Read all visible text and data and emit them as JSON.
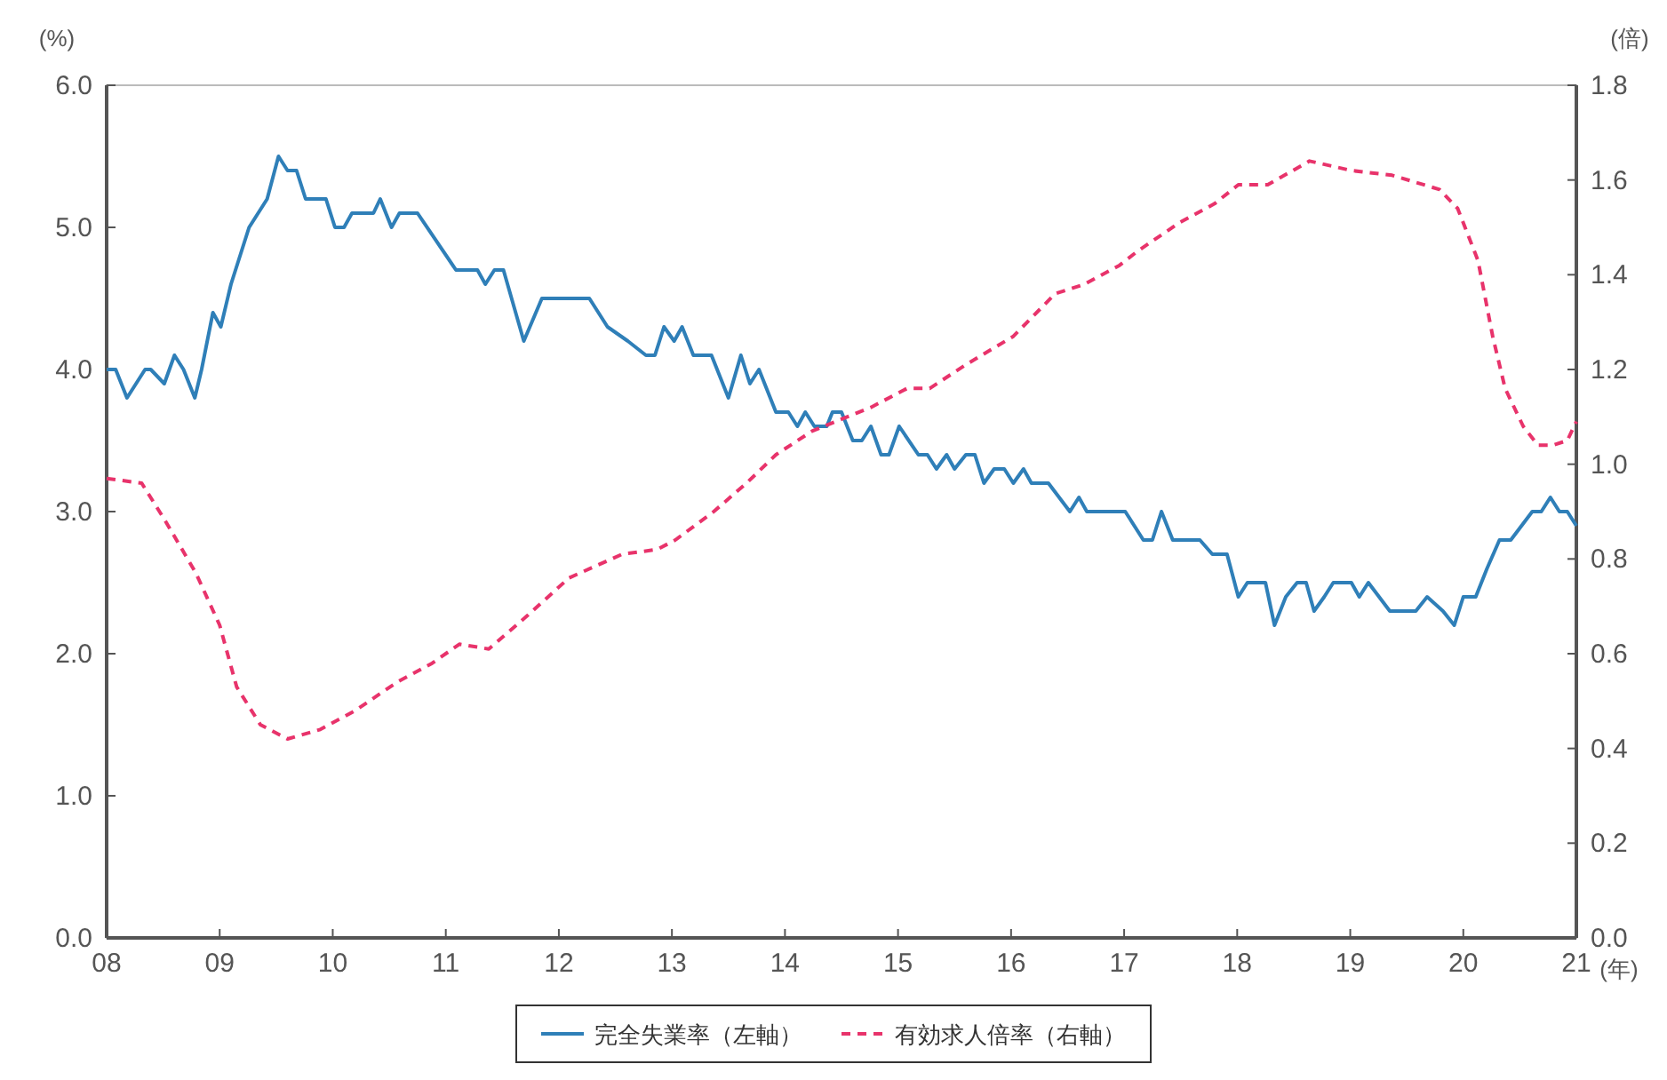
{
  "chart_data": {
    "type": "line",
    "xlabel": "(年)",
    "ylabel": "(%)",
    "y2label": "(倍)",
    "xlim": [
      2008,
      2021
    ],
    "xticks": [
      {
        "value": 2008,
        "label": "08"
      },
      {
        "value": 2009,
        "label": "09"
      },
      {
        "value": 2010,
        "label": "10"
      },
      {
        "value": 2011,
        "label": "11"
      },
      {
        "value": 2012,
        "label": "12"
      },
      {
        "value": 2013,
        "label": "13"
      },
      {
        "value": 2014,
        "label": "14"
      },
      {
        "value": 2015,
        "label": "15"
      },
      {
        "value": 2016,
        "label": "16"
      },
      {
        "value": 2017,
        "label": "17"
      },
      {
        "value": 2018,
        "label": "18"
      },
      {
        "value": 2019,
        "label": "19"
      },
      {
        "value": 2020,
        "label": "20"
      },
      {
        "value": 2021,
        "label": "21"
      }
    ],
    "ylim": [
      0,
      6
    ],
    "yticks": [
      {
        "value": 0,
        "label": "0.0"
      },
      {
        "value": 1,
        "label": "1.0"
      },
      {
        "value": 2,
        "label": "2.0"
      },
      {
        "value": 3,
        "label": "3.0"
      },
      {
        "value": 4,
        "label": "4.0"
      },
      {
        "value": 5,
        "label": "5.0"
      },
      {
        "value": 6,
        "label": "6.0"
      }
    ],
    "y2lim": [
      0,
      1.8
    ],
    "y2ticks": [
      {
        "value": 0,
        "label": "0.0"
      },
      0.2,
      0.4,
      0.6,
      0.8,
      {
        "value": 1,
        "label": "1.0"
      },
      1.2,
      1.4,
      1.6,
      1.8
    ],
    "grid": false,
    "legend": "bottom",
    "series": [
      {
        "name": "完全失業率（左軸）",
        "color": "#2f7fb8",
        "line_style": "solid",
        "x": [
          2008.0,
          2008.08,
          2008.18,
          2008.34,
          2008.39,
          2008.51,
          2008.6,
          2008.68,
          2008.78,
          2008.84,
          2008.94,
          2009.01,
          2009.1,
          2009.26,
          2009.42,
          2009.52,
          2009.6,
          2009.68,
          2009.76,
          2009.94,
          2010.02,
          2010.1,
          2010.17,
          2010.36,
          2010.42,
          2010.52,
          2010.59,
          2010.75,
          2011.09,
          2011.28,
          2011.35,
          2011.43,
          2011.51,
          2011.69,
          2011.85,
          2012.27,
          2012.43,
          2012.61,
          2012.77,
          2012.85,
          2012.93,
          2013.02,
          2013.09,
          2013.19,
          2013.35,
          2013.5,
          2013.61,
          2013.69,
          2013.77,
          2013.92,
          2014.03,
          2014.11,
          2014.18,
          2014.26,
          2014.37,
          2014.42,
          2014.5,
          2014.6,
          2014.68,
          2014.76,
          2014.85,
          2014.92,
          2015.01,
          2015.18,
          2015.26,
          2015.34,
          2015.43,
          2015.5,
          2015.6,
          2015.68,
          2015.76,
          2015.85,
          2015.94,
          2016.02,
          2016.11,
          2016.18,
          2016.33,
          2016.52,
          2016.6,
          2016.67,
          2016.96,
          2017.01,
          2017.17,
          2017.25,
          2017.33,
          2017.43,
          2017.67,
          2017.78,
          2017.91,
          2018.01,
          2018.09,
          2018.25,
          2018.33,
          2018.43,
          2018.53,
          2018.61,
          2018.68,
          2018.77,
          2018.85,
          2019.01,
          2019.08,
          2019.16,
          2019.35,
          2019.58,
          2019.68,
          2019.82,
          2019.92,
          2020.0,
          2020.11,
          2020.21,
          2020.32,
          2020.42,
          2020.61,
          2020.69,
          2020.77,
          2020.85,
          2020.92,
          2021.0
        ],
        "values": [
          4.0,
          4.0,
          3.8,
          4.0,
          4.0,
          3.9,
          4.1,
          4.0,
          3.8,
          4.0,
          4.4,
          4.3,
          4.6,
          5.0,
          5.2,
          5.5,
          5.4,
          5.4,
          5.2,
          5.2,
          5.0,
          5.0,
          5.1,
          5.1,
          5.2,
          5.0,
          5.1,
          5.1,
          4.7,
          4.7,
          4.6,
          4.7,
          4.7,
          4.2,
          4.5,
          4.5,
          4.3,
          4.2,
          4.1,
          4.1,
          4.3,
          4.2,
          4.3,
          4.1,
          4.1,
          3.8,
          4.1,
          3.9,
          4.0,
          3.7,
          3.7,
          3.6,
          3.7,
          3.6,
          3.6,
          3.7,
          3.7,
          3.5,
          3.5,
          3.6,
          3.4,
          3.4,
          3.6,
          3.4,
          3.4,
          3.3,
          3.4,
          3.3,
          3.4,
          3.4,
          3.2,
          3.3,
          3.3,
          3.2,
          3.3,
          3.2,
          3.2,
          3.0,
          3.1,
          3.0,
          3.0,
          3.0,
          2.8,
          2.8,
          3.0,
          2.8,
          2.8,
          2.7,
          2.7,
          2.4,
          2.5,
          2.5,
          2.2,
          2.4,
          2.5,
          2.5,
          2.3,
          2.4,
          2.5,
          2.5,
          2.4,
          2.5,
          2.3,
          2.3,
          2.4,
          2.3,
          2.2,
          2.4,
          2.4,
          2.6,
          2.8,
          2.8,
          3.0,
          3.0,
          3.1,
          3.0,
          3.0,
          2.9
        ]
      },
      {
        "name": "有効求人倍率（右軸）",
        "color": "#e8336b",
        "line_style": "dashed",
        "axis": "y2",
        "x": [
          2008.0,
          2008.31,
          2008.52,
          2008.79,
          2009.0,
          2009.15,
          2009.36,
          2009.6,
          2009.89,
          2010.2,
          2010.57,
          2010.88,
          2011.12,
          2011.38,
          2011.72,
          2012.09,
          2012.56,
          2012.87,
          2013.03,
          2013.37,
          2013.66,
          2013.92,
          2014.24,
          2014.55,
          2014.76,
          2015.08,
          2015.28,
          2015.6,
          2016.02,
          2016.39,
          2016.65,
          2016.96,
          2017.12,
          2017.49,
          2017.8,
          2018.01,
          2018.27,
          2018.64,
          2019.01,
          2019.37,
          2019.79,
          2019.95,
          2020.13,
          2020.26,
          2020.37,
          2020.53,
          2020.66,
          2020.79,
          2020.92,
          2021.0
        ],
        "values": [
          0.97,
          0.96,
          0.88,
          0.77,
          0.66,
          0.53,
          0.45,
          0.42,
          0.44,
          0.48,
          0.54,
          0.58,
          0.62,
          0.61,
          0.68,
          0.76,
          0.81,
          0.82,
          0.84,
          0.9,
          0.96,
          1.02,
          1.07,
          1.1,
          1.12,
          1.16,
          1.16,
          1.21,
          1.27,
          1.36,
          1.38,
          1.42,
          1.45,
          1.51,
          1.55,
          1.59,
          1.59,
          1.64,
          1.62,
          1.61,
          1.58,
          1.54,
          1.43,
          1.27,
          1.16,
          1.08,
          1.04,
          1.04,
          1.05,
          1.09
        ]
      }
    ]
  }
}
